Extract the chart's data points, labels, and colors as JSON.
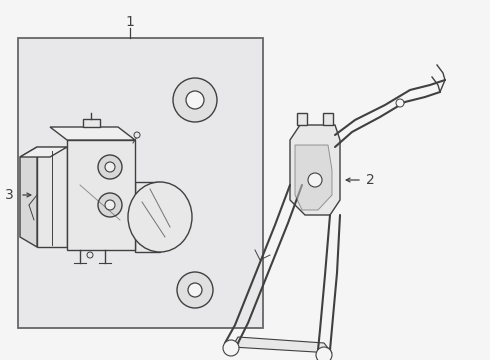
{
  "bg_color": "#f5f5f5",
  "box_bg": "#e8e8eb",
  "line_color": "#404040",
  "white": "#ffffff",
  "label_color": "#111111",
  "figsize": [
    4.9,
    3.6
  ],
  "dpi": 100,
  "label1": "1",
  "label2": "2",
  "label3": "3"
}
